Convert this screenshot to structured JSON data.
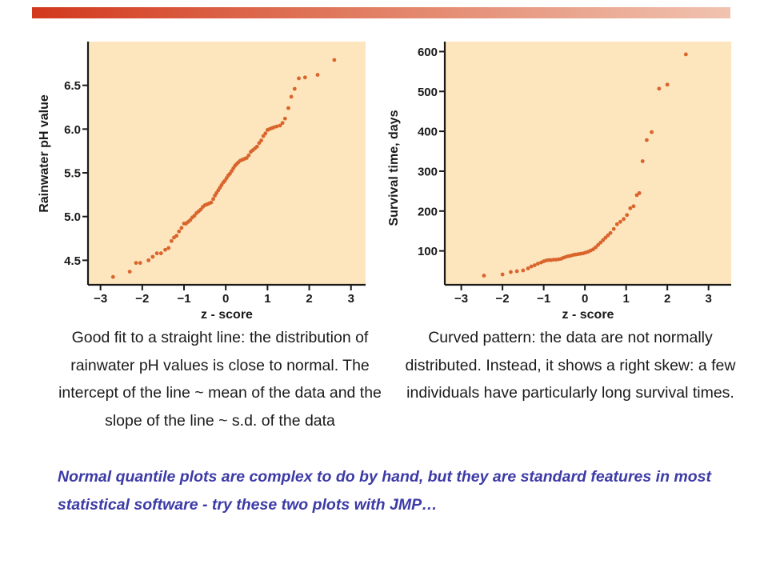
{
  "theme": {
    "accent_bar_color": "#d2381d",
    "plot_background": "#fde5bd",
    "point_color": "#d9642c",
    "axis_color": "#1a1a1a",
    "note_color": "#3c3aa6"
  },
  "chart_data": [
    {
      "type": "scatter",
      "title": "",
      "xlabel": "z - score",
      "ylabel": "Rainwater pH value",
      "xlim": [
        -3.3,
        3.35
      ],
      "ylim": [
        4.22,
        7.0
      ],
      "xticks": [
        -3,
        -2,
        -1,
        0,
        1,
        2,
        3
      ],
      "xtick_labels": [
        "−3",
        "−2",
        "−1",
        "0",
        "1",
        "2",
        "3"
      ],
      "yticks": [
        4.5,
        5.0,
        5.5,
        6.0,
        6.5
      ],
      "ytick_labels": [
        "4.5",
        "5.0",
        "5.5",
        "6.0",
        "6.5"
      ],
      "grid": false,
      "series": [
        {
          "points": [
            [
              -2.7,
              4.31
            ],
            [
              -2.3,
              4.37
            ],
            [
              -2.15,
              4.47
            ],
            [
              -2.05,
              4.47
            ],
            [
              -1.85,
              4.5
            ],
            [
              -1.75,
              4.54
            ],
            [
              -1.65,
              4.58
            ],
            [
              -1.55,
              4.58
            ],
            [
              -1.45,
              4.62
            ],
            [
              -1.37,
              4.64
            ],
            [
              -1.3,
              4.72
            ],
            [
              -1.24,
              4.76
            ],
            [
              -1.18,
              4.78
            ],
            [
              -1.12,
              4.83
            ],
            [
              -1.06,
              4.87
            ],
            [
              -1.0,
              4.92
            ],
            [
              -0.95,
              4.92
            ],
            [
              -0.9,
              4.94
            ],
            [
              -0.85,
              4.96
            ],
            [
              -0.8,
              4.99
            ],
            [
              -0.75,
              5.01
            ],
            [
              -0.7,
              5.04
            ],
            [
              -0.65,
              5.06
            ],
            [
              -0.6,
              5.08
            ],
            [
              -0.55,
              5.11
            ],
            [
              -0.5,
              5.13
            ],
            [
              -0.45,
              5.14
            ],
            [
              -0.4,
              5.15
            ],
            [
              -0.35,
              5.16
            ],
            [
              -0.3,
              5.2
            ],
            [
              -0.26,
              5.24
            ],
            [
              -0.22,
              5.27
            ],
            [
              -0.18,
              5.3
            ],
            [
              -0.14,
              5.33
            ],
            [
              -0.1,
              5.36
            ],
            [
              -0.06,
              5.39
            ],
            [
              -0.02,
              5.41
            ],
            [
              0.02,
              5.44
            ],
            [
              0.06,
              5.47
            ],
            [
              0.1,
              5.49
            ],
            [
              0.14,
              5.52
            ],
            [
              0.18,
              5.55
            ],
            [
              0.22,
              5.58
            ],
            [
              0.26,
              5.6
            ],
            [
              0.3,
              5.62
            ],
            [
              0.35,
              5.64
            ],
            [
              0.4,
              5.65
            ],
            [
              0.45,
              5.66
            ],
            [
              0.5,
              5.67
            ],
            [
              0.55,
              5.7
            ],
            [
              0.6,
              5.74
            ],
            [
              0.65,
              5.76
            ],
            [
              0.7,
              5.78
            ],
            [
              0.75,
              5.8
            ],
            [
              0.8,
              5.84
            ],
            [
              0.85,
              5.87
            ],
            [
              0.9,
              5.92
            ],
            [
              0.95,
              5.95
            ],
            [
              1.0,
              5.99
            ],
            [
              1.05,
              6.0
            ],
            [
              1.1,
              6.01
            ],
            [
              1.15,
              6.02
            ],
            [
              1.22,
              6.03
            ],
            [
              1.3,
              6.04
            ],
            [
              1.36,
              6.07
            ],
            [
              1.42,
              6.12
            ],
            [
              1.5,
              6.24
            ],
            [
              1.57,
              6.37
            ],
            [
              1.65,
              6.46
            ],
            [
              1.75,
              6.58
            ],
            [
              1.9,
              6.59
            ],
            [
              2.2,
              6.62
            ],
            [
              2.6,
              6.79
            ]
          ]
        }
      ]
    },
    {
      "type": "scatter",
      "title": "",
      "xlabel": "z - score",
      "ylabel": "Survival time, days",
      "xlim": [
        -3.4,
        3.55
      ],
      "ylim": [
        15,
        625
      ],
      "xticks": [
        -3,
        -2,
        -1,
        0,
        1,
        2,
        3
      ],
      "xtick_labels": [
        "−3",
        "−2",
        "−1",
        "0",
        "1",
        "2",
        "3"
      ],
      "yticks": [
        100,
        200,
        300,
        400,
        500,
        600
      ],
      "ytick_labels": [
        "100",
        "200",
        "300",
        "400",
        "500",
        "600"
      ],
      "grid": false,
      "series": [
        {
          "points": [
            [
              -2.45,
              38
            ],
            [
              -2.0,
              41
            ],
            [
              -1.8,
              47
            ],
            [
              -1.65,
              49
            ],
            [
              -1.5,
              51
            ],
            [
              -1.38,
              56
            ],
            [
              -1.3,
              61
            ],
            [
              -1.22,
              64
            ],
            [
              -1.14,
              68
            ],
            [
              -1.06,
              71
            ],
            [
              -1.0,
              74
            ],
            [
              -0.94,
              76
            ],
            [
              -0.88,
              77
            ],
            [
              -0.82,
              77
            ],
            [
              -0.76,
              78
            ],
            [
              -0.7,
              78
            ],
            [
              -0.64,
              79
            ],
            [
              -0.58,
              80
            ],
            [
              -0.52,
              83
            ],
            [
              -0.46,
              85
            ],
            [
              -0.4,
              87
            ],
            [
              -0.34,
              88
            ],
            [
              -0.28,
              90
            ],
            [
              -0.22,
              91
            ],
            [
              -0.16,
              92
            ],
            [
              -0.1,
              93
            ],
            [
              -0.04,
              94
            ],
            [
              0.02,
              96
            ],
            [
              0.08,
              98
            ],
            [
              0.14,
              101
            ],
            [
              0.2,
              104
            ],
            [
              0.26,
              109
            ],
            [
              0.32,
              115
            ],
            [
              0.38,
              121
            ],
            [
              0.44,
              127
            ],
            [
              0.5,
              133
            ],
            [
              0.56,
              139
            ],
            [
              0.62,
              145
            ],
            [
              0.7,
              155
            ],
            [
              0.78,
              167
            ],
            [
              0.86,
              173
            ],
            [
              0.94,
              180
            ],
            [
              1.02,
              190
            ],
            [
              1.1,
              207
            ],
            [
              1.18,
              212
            ],
            [
              1.26,
              240
            ],
            [
              1.32,
              245
            ],
            [
              1.4,
              325
            ],
            [
              1.5,
              378
            ],
            [
              1.62,
              398
            ],
            [
              1.8,
              507
            ],
            [
              2.0,
              517
            ],
            [
              2.45,
              593
            ]
          ]
        }
      ]
    }
  ],
  "captions": {
    "left": "Good fit to a straight line: the distribution of rainwater pH values is close to normal. The intercept of the line ~ mean of the data and the slope of the line ~ s.d. of the data",
    "right": "Curved pattern: the data are not normally distributed. Instead, it shows a right skew: a few individuals have particularly long survival times."
  },
  "footer_note": "Normal quantile plots are complex to do by hand, but they are standard features in most statistical software - try these two plots with JMP…"
}
